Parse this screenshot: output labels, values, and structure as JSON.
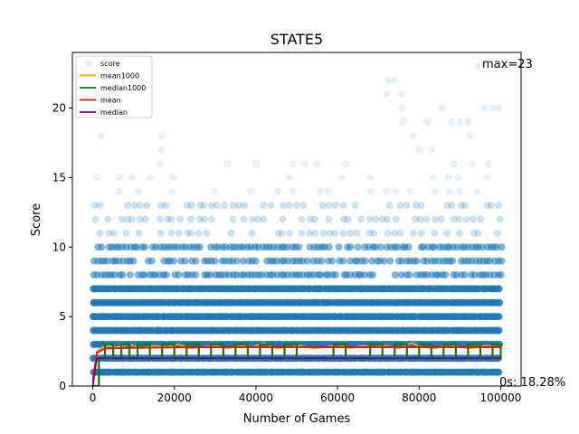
{
  "chart_data": {
    "type": "scatter",
    "title": "STATE5",
    "xlabel": "Number of Games",
    "ylabel": "Score",
    "xlim": [
      -5000,
      105000
    ],
    "ylim": [
      0,
      24
    ],
    "xticks": [
      0,
      20000,
      40000,
      60000,
      80000,
      100000
    ],
    "xtick_labels": [
      "0",
      "20000",
      "40000",
      "60000",
      "80000",
      "100000"
    ],
    "yticks": [
      0,
      5,
      10,
      15,
      20
    ],
    "ytick_labels": [
      "0",
      "5",
      "10",
      "15",
      "20"
    ],
    "grid": false,
    "legend_position": "top-left",
    "legend": [
      "score",
      "mean1000",
      "median1000",
      "mean",
      "median"
    ],
    "annotations": {
      "max_label": "max=23",
      "zero_label": "0s: 18.28%"
    },
    "score_point_color": "#1f77b4",
    "series": [
      {
        "name": "score",
        "kind": "scatter",
        "color": "#1f77b4",
        "score_levels": [
          {
            "y": 1,
            "density": "dense"
          },
          {
            "y": 2,
            "density": "dense"
          },
          {
            "y": 3,
            "density": "dense"
          },
          {
            "y": 4,
            "density": "dense"
          },
          {
            "y": 5,
            "density": "dense"
          },
          {
            "y": 6,
            "density": "dense"
          },
          {
            "y": 7,
            "density": "dense"
          },
          {
            "y": 8,
            "density": "medium"
          },
          {
            "y": 9,
            "density": "medium"
          },
          {
            "y": 10,
            "density": "medium"
          },
          {
            "y": 11,
            "density": "sparse"
          },
          {
            "y": 12,
            "density": "sparse"
          },
          {
            "y": 13,
            "density": "sparse"
          },
          {
            "y": 14,
            "density": "rare"
          },
          {
            "y": 15,
            "density": "rare"
          }
        ],
        "outliers": [
          {
            "x": 2000,
            "y": 18
          },
          {
            "x": 17000,
            "y": 18
          },
          {
            "x": 16500,
            "y": 16
          },
          {
            "x": 16800,
            "y": 17
          },
          {
            "x": 52000,
            "y": 16
          },
          {
            "x": 55000,
            "y": 16
          },
          {
            "x": 49000,
            "y": 16
          },
          {
            "x": 72000,
            "y": 21
          },
          {
            "x": 72500,
            "y": 22
          },
          {
            "x": 74000,
            "y": 22
          },
          {
            "x": 75500,
            "y": 21
          },
          {
            "x": 75800,
            "y": 20
          },
          {
            "x": 76000,
            "y": 19
          },
          {
            "x": 78500,
            "y": 18
          },
          {
            "x": 80000,
            "y": 17
          },
          {
            "x": 82000,
            "y": 19
          },
          {
            "x": 83000,
            "y": 17
          },
          {
            "x": 85500,
            "y": 20
          },
          {
            "x": 88000,
            "y": 19
          },
          {
            "x": 90000,
            "y": 19
          },
          {
            "x": 92000,
            "y": 19
          },
          {
            "x": 92500,
            "y": 18
          },
          {
            "x": 93000,
            "y": 16
          },
          {
            "x": 94500,
            "y": 23
          },
          {
            "x": 96000,
            "y": 20
          },
          {
            "x": 97000,
            "y": 16
          },
          {
            "x": 98000,
            "y": 20
          },
          {
            "x": 99500,
            "y": 20
          },
          {
            "x": 33000,
            "y": 16
          },
          {
            "x": 40000,
            "y": 16
          },
          {
            "x": 62000,
            "y": 16
          },
          {
            "x": 88500,
            "y": 16
          }
        ]
      },
      {
        "name": "mean1000",
        "kind": "line",
        "color": "#ffa500",
        "x": [
          0,
          1000,
          3000,
          6000,
          9000,
          12000,
          15000,
          18000,
          21000,
          24000,
          27000,
          30000,
          33000,
          36000,
          39000,
          42000,
          45000,
          48000,
          51000,
          54000,
          57000,
          60000,
          63000,
          66000,
          69000,
          72000,
          75000,
          78000,
          81000,
          84000,
          87000,
          90000,
          93000,
          96000,
          100000
        ],
        "values": [
          0.3,
          2.5,
          2.9,
          2.8,
          3.0,
          2.7,
          2.9,
          2.8,
          3.0,
          2.7,
          2.8,
          2.9,
          2.7,
          2.9,
          2.8,
          3.1,
          2.7,
          2.8,
          2.9,
          2.7,
          2.8,
          3.0,
          2.7,
          2.9,
          2.8,
          2.9,
          2.7,
          3.1,
          2.8,
          2.7,
          3.0,
          2.8,
          2.7,
          2.9,
          2.8
        ]
      },
      {
        "name": "median1000",
        "kind": "step",
        "color": "#008000",
        "x": [
          0,
          1500,
          3000,
          5000,
          7000,
          9000,
          11000,
          14000,
          17000,
          20000,
          23000,
          26000,
          29000,
          32000,
          35000,
          38000,
          41000,
          44000,
          47000,
          50000,
          53000,
          56000,
          59000,
          62000,
          65000,
          68000,
          71000,
          74000,
          77000,
          80000,
          83000,
          86000,
          89000,
          92000,
          95000,
          98000,
          100000
        ],
        "values": [
          0,
          2,
          3,
          2,
          3,
          2,
          3,
          2,
          3,
          2,
          3,
          2,
          3,
          2,
          3,
          2,
          3,
          2,
          3,
          2,
          2,
          2,
          3,
          2,
          2,
          3,
          2,
          3,
          2,
          3,
          2,
          3,
          2,
          3,
          2,
          3,
          2
        ]
      },
      {
        "name": "mean",
        "kind": "line",
        "color": "#ff0000",
        "x": [
          0,
          1000,
          3000,
          10000,
          30000,
          60000,
          100000
        ],
        "values": [
          0.3,
          2.4,
          2.7,
          2.75,
          2.8,
          2.8,
          2.8
        ]
      },
      {
        "name": "median",
        "kind": "line",
        "color": "#800080",
        "x": [
          0,
          500,
          1000,
          100000
        ],
        "values": [
          0,
          1,
          2,
          2
        ]
      }
    ]
  }
}
